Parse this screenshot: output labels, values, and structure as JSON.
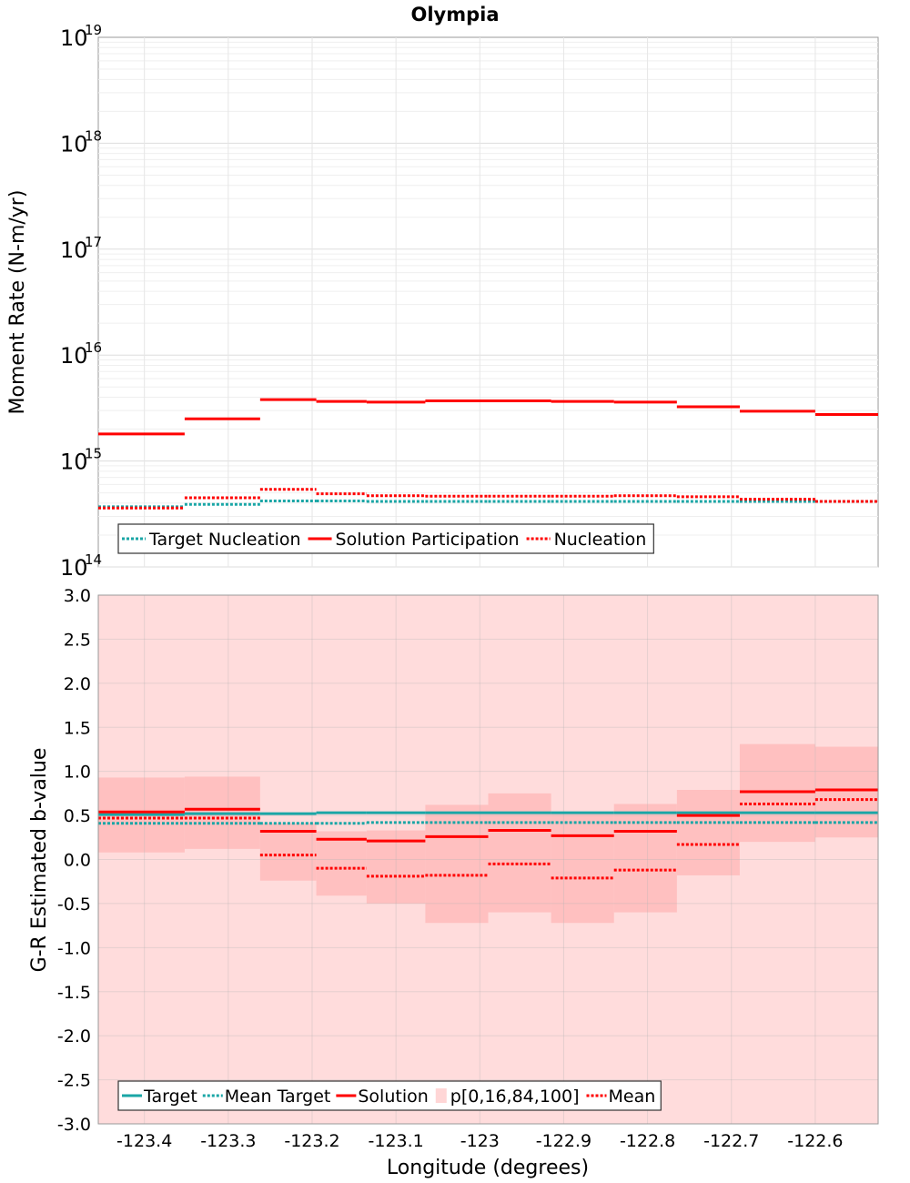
{
  "title": "Olympia",
  "xlabel": "Longitude (degrees)",
  "colors": {
    "target": "#1aa6a6",
    "solution": "#ff0000",
    "band_outer": "#ffdcdc",
    "band_inner": "#ffc0c0",
    "grid": "#e6e6e6",
    "frame": "#999999"
  },
  "chart_data": [
    {
      "type": "line",
      "title": "Olympia",
      "ylabel": "Moment Rate (N-m/yr)",
      "xlabel": "",
      "yscale": "log",
      "ylim": [
        100000000000000.0,
        1e+19
      ],
      "xlim": [
        -123.455,
        -122.525
      ],
      "grid": true,
      "legend_position": "bottom-left",
      "y_ticks": [
        {
          "base": "10",
          "exp": "14",
          "value": 100000000000000.0
        },
        {
          "base": "10",
          "exp": "15",
          "value": 1000000000000000.0
        },
        {
          "base": "10",
          "exp": "16",
          "value": 1e+16
        },
        {
          "base": "10",
          "exp": "17",
          "value": 1e+17
        },
        {
          "base": "10",
          "exp": "18",
          "value": 1e+18
        },
        {
          "base": "10",
          "exp": "19",
          "value": 1e+19
        }
      ],
      "bins": [
        [
          -123.455,
          -123.352
        ],
        [
          -123.352,
          -123.262
        ],
        [
          -123.262,
          -123.195
        ],
        [
          -123.195,
          -123.135
        ],
        [
          -123.135,
          -123.065
        ],
        [
          -123.065,
          -122.99
        ],
        [
          -122.99,
          -122.915
        ],
        [
          -122.915,
          -122.84
        ],
        [
          -122.84,
          -122.765
        ],
        [
          -122.765,
          -122.69
        ],
        [
          -122.69,
          -122.6
        ],
        [
          -122.6,
          -122.525
        ]
      ],
      "series": [
        {
          "name": "Target Nucleation",
          "style": "dotted",
          "color": "#1aa6a6",
          "values": [
            370000000000000.0,
            390000000000000.0,
            420000000000000.0,
            420000000000000.0,
            415000000000000.0,
            415000000000000.0,
            415000000000000.0,
            415000000000000.0,
            415000000000000.0,
            415000000000000.0,
            415000000000000.0,
            415000000000000.0
          ]
        },
        {
          "name": "Solution Participation",
          "style": "solid",
          "color": "#ff0000",
          "values": [
            1800000000000000.0,
            2500000000000000.0,
            3800000000000000.0,
            3650000000000000.0,
            3600000000000000.0,
            3700000000000000.0,
            3700000000000000.0,
            3650000000000000.0,
            3600000000000000.0,
            3250000000000000.0,
            2950000000000000.0,
            2750000000000000.0
          ]
        },
        {
          "name": "Nucleation",
          "style": "dotted",
          "color": "#ff0000",
          "values": [
            360000000000000.0,
            450000000000000.0,
            540000000000000.0,
            490000000000000.0,
            470000000000000.0,
            465000000000000.0,
            465000000000000.0,
            465000000000000.0,
            470000000000000.0,
            460000000000000.0,
            435000000000000.0,
            415000000000000.0
          ]
        }
      ]
    },
    {
      "type": "line",
      "ylabel": "G-R Estimated b-value",
      "xlabel": "Longitude (degrees)",
      "ylim": [
        -3.0,
        3.0
      ],
      "xlim": [
        -123.455,
        -122.525
      ],
      "grid": true,
      "legend_position": "bottom-left",
      "y_ticks": [
        "-3.0",
        "-2.5",
        "-2.0",
        "-1.5",
        "-1.0",
        "-0.5",
        "0.0",
        "0.5",
        "1.0",
        "1.5",
        "2.0",
        "2.5",
        "3.0"
      ],
      "x_ticks": [
        "-123.4",
        "-123.3",
        "-123.2",
        "-123.1",
        "-123",
        "-122.9",
        "-122.8",
        "-122.7",
        "-122.6"
      ],
      "x_tick_values": [
        -123.4,
        -123.3,
        -123.2,
        -123.1,
        -123.0,
        -122.9,
        -122.8,
        -122.7,
        -122.6
      ],
      "bins": [
        [
          -123.455,
          -123.352
        ],
        [
          -123.352,
          -123.262
        ],
        [
          -123.262,
          -123.195
        ],
        [
          -123.195,
          -123.135
        ],
        [
          -123.135,
          -123.065
        ],
        [
          -123.065,
          -122.99
        ],
        [
          -122.99,
          -122.915
        ],
        [
          -122.915,
          -122.84
        ],
        [
          -122.84,
          -122.765
        ],
        [
          -122.765,
          -122.69
        ],
        [
          -122.69,
          -122.6
        ],
        [
          -122.6,
          -122.525
        ]
      ],
      "series": [
        {
          "name": "Target",
          "style": "solid",
          "color": "#1aa6a6",
          "values": [
            0.51,
            0.52,
            0.52,
            0.53,
            0.53,
            0.53,
            0.53,
            0.53,
            0.53,
            0.53,
            0.53,
            0.53
          ]
        },
        {
          "name": "Mean Target",
          "style": "dotted",
          "color": "#1aa6a6",
          "values": [
            0.41,
            0.41,
            0.41,
            0.41,
            0.42,
            0.42,
            0.42,
            0.42,
            0.42,
            0.42,
            0.42,
            0.42
          ]
        },
        {
          "name": "Solution",
          "style": "solid",
          "color": "#ff0000",
          "values": [
            0.54,
            0.57,
            0.32,
            0.23,
            0.21,
            0.26,
            0.33,
            0.27,
            0.32,
            0.5,
            0.77,
            0.79
          ]
        },
        {
          "name": "p[0,16,84,100]",
          "style": "band",
          "color": "#ffc0c0",
          "outer": [
            -3.0,
            3.0
          ],
          "lower16": [
            0.08,
            0.12,
            -0.24,
            -0.41,
            -0.5,
            -0.72,
            -0.6,
            -0.72,
            -0.6,
            -0.18,
            0.2,
            0.25
          ],
          "upper84": [
            0.93,
            0.94,
            0.41,
            0.32,
            0.33,
            0.62,
            0.75,
            0.54,
            0.63,
            0.79,
            1.31,
            1.28
          ]
        },
        {
          "name": "Mean",
          "style": "dotted",
          "color": "#ff0000",
          "values": [
            0.47,
            0.47,
            0.05,
            -0.1,
            -0.19,
            -0.18,
            -0.05,
            -0.21,
            -0.12,
            0.17,
            0.63,
            0.68
          ]
        }
      ]
    }
  ]
}
